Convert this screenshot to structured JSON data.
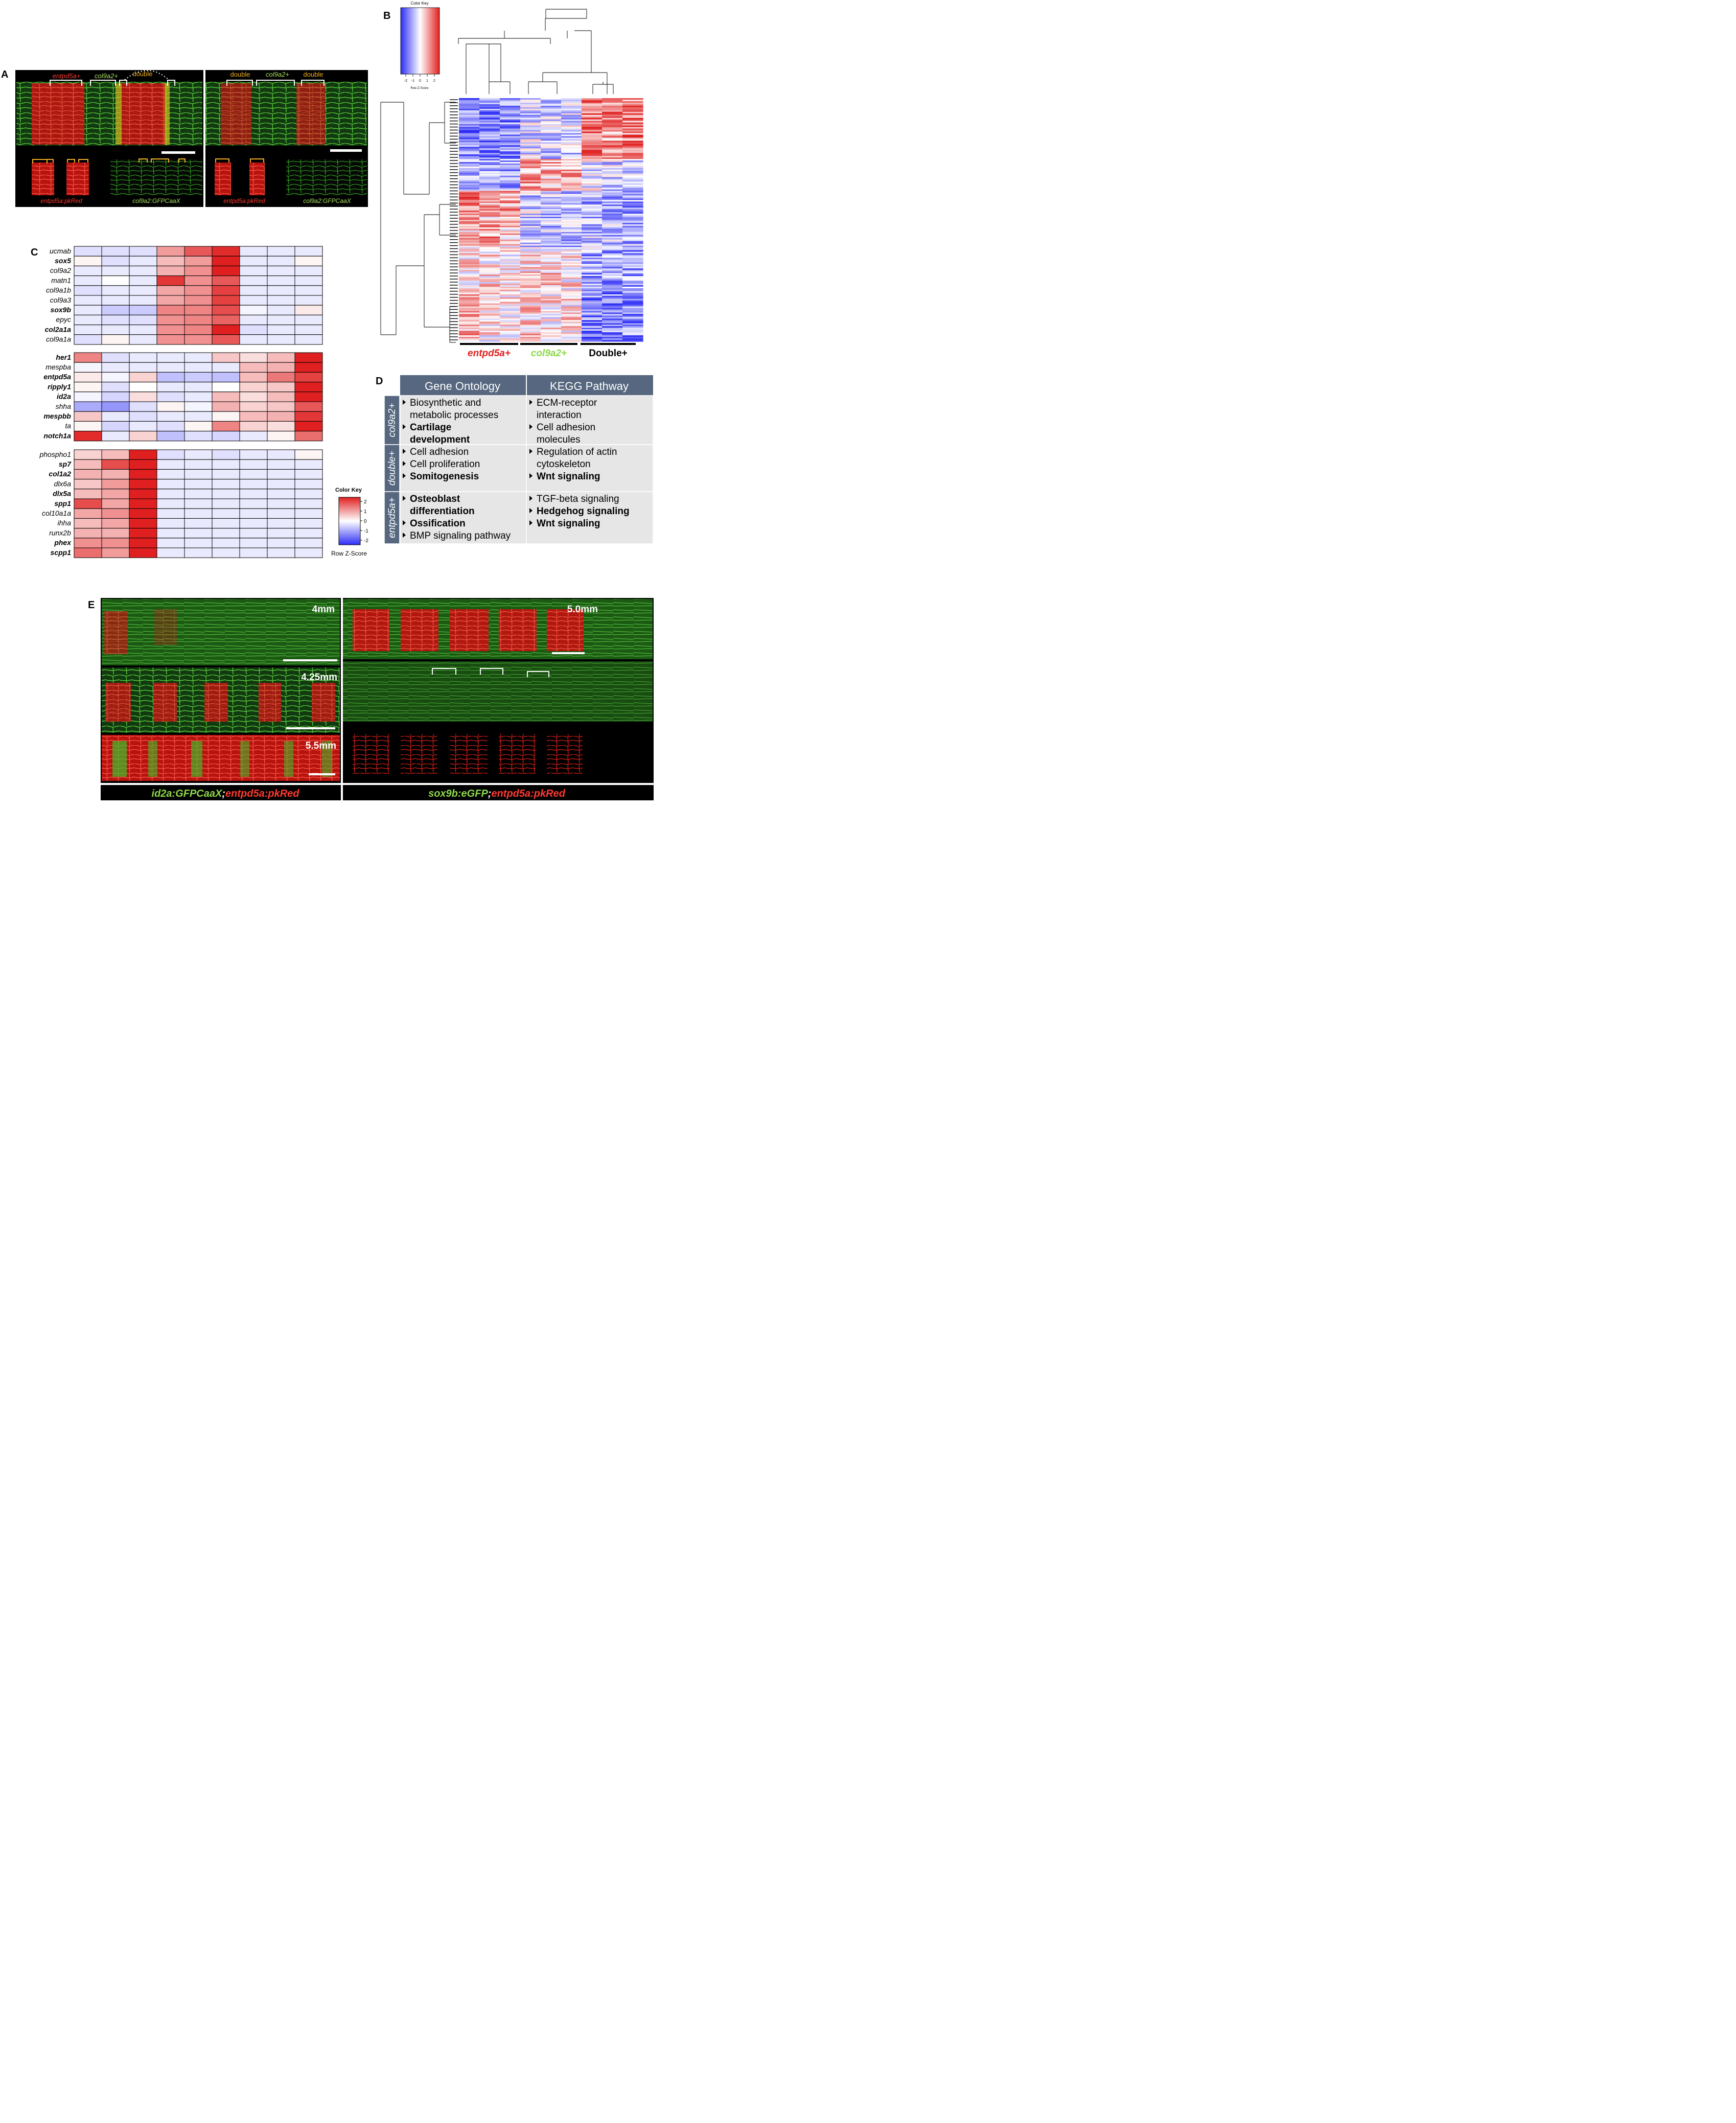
{
  "panelA": {
    "letter": "A",
    "left_labels": {
      "entpd": "entpd5a+",
      "col9": "col9a2+",
      "double": "double"
    },
    "right_labels": {
      "double1": "double",
      "col9": "col9a2+",
      "double2": "double"
    },
    "captions": [
      "entpd5a:pkRed",
      "col9a2:GFPCaaX",
      "entpd5a:pkRed",
      "col9a2:GFPCaaX"
    ]
  },
  "panelB": {
    "letter": "B",
    "key_title": "Color Key",
    "key_axis_label": "Row Z-Score",
    "key_ticks": [
      "-2",
      "-1",
      "0",
      "1",
      "2"
    ],
    "groups": [
      "entpd5a+",
      "col9a2+",
      "Double+"
    ]
  },
  "panelC": {
    "letter": "C",
    "key_title": "Color Key",
    "key_axis_label": "Row Z-Score",
    "key_ticks": [
      "2",
      "1",
      "0",
      "-1",
      "-2"
    ]
  },
  "panelD": {
    "letter": "D",
    "headers": [
      "Gene Ontology",
      "KEGG Pathway"
    ],
    "rows": [
      {
        "label": "col9a2+",
        "go": [
          {
            "text": "Biosynthetic and",
            "bullet": true,
            "bold": false
          },
          {
            "text": "metabolic processes",
            "bullet": false,
            "bold": false
          },
          {
            "text": "Cartilage",
            "bullet": true,
            "bold": true
          },
          {
            "text": "development",
            "bullet": false,
            "bold": true
          }
        ],
        "kegg": [
          {
            "text": "ECM-receptor",
            "bullet": true,
            "bold": false
          },
          {
            "text": "interaction",
            "bullet": false,
            "bold": false
          },
          {
            "text": "Cell adhesion",
            "bullet": true,
            "bold": false
          },
          {
            "text": "molecules",
            "bullet": false,
            "bold": false
          }
        ]
      },
      {
        "label": "double+",
        "go": [
          {
            "text": "Cell adhesion",
            "bullet": true,
            "bold": false
          },
          {
            "text": "Cell proliferation",
            "bullet": true,
            "bold": false
          },
          {
            "text": "Somitogenesis",
            "bullet": true,
            "bold": true
          }
        ],
        "kegg": [
          {
            "text": "Regulation of actin",
            "bullet": true,
            "bold": false
          },
          {
            "text": "cytoskeleton",
            "bullet": false,
            "bold": false
          },
          {
            "text": "Wnt signaling",
            "bullet": true,
            "bold": true
          }
        ]
      },
      {
        "label": "entpd5a+",
        "go": [
          {
            "text": "Osteoblast",
            "bullet": true,
            "bold": true
          },
          {
            "text": "differentiation",
            "bullet": false,
            "bold": true
          },
          {
            "text": "Ossification",
            "bullet": true,
            "bold": true
          },
          {
            "text": "BMP signaling pathway",
            "bullet": true,
            "bold": false
          }
        ],
        "kegg": [
          {
            "text": "TGF-beta signaling",
            "bullet": true,
            "bold": false
          },
          {
            "text": "Hedgehog signaling",
            "bullet": true,
            "bold": true
          },
          {
            "text": "Wnt signaling",
            "bullet": true,
            "bold": true
          }
        ]
      }
    ]
  },
  "panelE": {
    "letter": "E",
    "stages": [
      "4mm",
      "4.25mm",
      "5.5mm",
      "5.0mm"
    ],
    "caption_left": [
      "id2a:GFPCaaX",
      ";",
      "entpd5a:pkRed"
    ],
    "caption_right": [
      "sox9b:eGFP",
      ";",
      "entpd5a:pkRed"
    ]
  },
  "chart_data": {
    "type": "heatmap",
    "scale": {
      "min": -2,
      "max": 2,
      "colors": [
        "#2d2df5",
        "#ffffff",
        "#e02020"
      ]
    },
    "blocks": [
      {
        "genes": [
          {
            "name": "ucmab",
            "bold": false,
            "values": [
              -0.3,
              -0.3,
              -0.3,
              0.9,
              1.5,
              1.9,
              -0.2,
              -0.2,
              -0.2
            ]
          },
          {
            "name": "sox5",
            "bold": true,
            "values": [
              0.1,
              -0.3,
              -0.2,
              0.6,
              0.9,
              2.2,
              -0.2,
              -0.2,
              0.1
            ]
          },
          {
            "name": "col9a2",
            "bold": false,
            "values": [
              -0.2,
              -0.2,
              -0.2,
              0.7,
              1.0,
              2.0,
              -0.2,
              -0.2,
              -0.2
            ]
          },
          {
            "name": "matn1",
            "bold": false,
            "values": [
              -0.2,
              0.0,
              -0.2,
              1.8,
              1.0,
              1.5,
              -0.2,
              -0.2,
              -0.2
            ]
          },
          {
            "name": "col9a1b",
            "bold": false,
            "values": [
              -0.3,
              -0.2,
              -0.2,
              0.8,
              1.0,
              1.7,
              -0.2,
              -0.2,
              -0.2
            ]
          },
          {
            "name": "col9a3",
            "bold": false,
            "values": [
              -0.2,
              -0.2,
              -0.2,
              0.8,
              1.0,
              1.7,
              -0.2,
              -0.2,
              -0.2
            ]
          },
          {
            "name": "sox9b",
            "bold": true,
            "values": [
              -0.2,
              -0.5,
              -0.5,
              1.1,
              1.1,
              1.6,
              -0.1,
              -0.2,
              0.2
            ]
          },
          {
            "name": "epyc",
            "bold": false,
            "values": [
              -0.2,
              -0.3,
              -0.3,
              1.0,
              1.1,
              1.4,
              -0.2,
              -0.2,
              -0.2
            ]
          },
          {
            "name": "col2a1a",
            "bold": true,
            "values": [
              -0.2,
              -0.2,
              -0.2,
              1.0,
              1.1,
              2.3,
              -0.3,
              -0.2,
              -0.2
            ]
          },
          {
            "name": "col9a1a",
            "bold": false,
            "values": [
              -0.3,
              0.1,
              -0.2,
              1.0,
              1.0,
              1.5,
              -0.2,
              -0.2,
              -0.2
            ]
          }
        ]
      },
      {
        "genes": [
          {
            "name": "her1",
            "bold": true,
            "values": [
              1.1,
              -0.3,
              -0.2,
              -0.2,
              -0.2,
              0.5,
              0.3,
              0.6,
              2.3
            ]
          },
          {
            "name": "mespba",
            "bold": false,
            "values": [
              -0.1,
              -0.2,
              -0.2,
              -0.2,
              -0.2,
              -0.2,
              0.6,
              0.7,
              2.2
            ]
          },
          {
            "name": "entpd5a",
            "bold": true,
            "values": [
              0.2,
              -0.1,
              0.4,
              -0.6,
              -0.5,
              -0.6,
              0.6,
              1.2,
              1.7
            ]
          },
          {
            "name": "ripply1",
            "bold": true,
            "values": [
              0.1,
              -0.3,
              0.0,
              -0.2,
              -0.2,
              0.0,
              0.4,
              0.5,
              2.0
            ]
          },
          {
            "name": "id2a",
            "bold": true,
            "values": [
              -0.1,
              -0.4,
              0.3,
              -0.3,
              -0.2,
              0.6,
              0.3,
              0.6,
              2.1
            ]
          },
          {
            "name": "shha",
            "bold": false,
            "values": [
              -0.8,
              -1.0,
              -0.3,
              0.1,
              -0.1,
              0.7,
              0.4,
              0.5,
              1.5
            ]
          },
          {
            "name": "mespbb",
            "bold": true,
            "values": [
              0.5,
              -0.2,
              -0.3,
              -0.2,
              -0.2,
              0.1,
              0.6,
              0.7,
              1.8
            ]
          },
          {
            "name": "ta",
            "bold": false,
            "values": [
              0.1,
              -0.4,
              -0.2,
              -0.3,
              0.1,
              1.1,
              0.4,
              0.3,
              2.0
            ]
          },
          {
            "name": "notch1a",
            "bold": true,
            "values": [
              1.9,
              -0.2,
              0.4,
              -0.6,
              -0.3,
              -0.4,
              -0.2,
              0.1,
              1.3
            ]
          }
        ]
      },
      {
        "genes": [
          {
            "name": "phospho1",
            "bold": false,
            "values": [
              0.4,
              0.6,
              2.3,
              -0.3,
              -0.2,
              -0.3,
              -0.2,
              -0.2,
              0.1
            ]
          },
          {
            "name": "sp7",
            "bold": true,
            "values": [
              0.6,
              1.6,
              2.0,
              -0.2,
              -0.2,
              -0.2,
              -0.2,
              -0.2,
              -0.2
            ]
          },
          {
            "name": "col1a2",
            "bold": true,
            "values": [
              0.7,
              0.7,
              2.1,
              -0.2,
              -0.2,
              -0.2,
              -0.2,
              -0.2,
              -0.2
            ]
          },
          {
            "name": "dlx6a",
            "bold": false,
            "values": [
              0.5,
              0.9,
              2.2,
              -0.2,
              -0.2,
              -0.2,
              -0.2,
              -0.2,
              -0.2
            ]
          },
          {
            "name": "dlx5a",
            "bold": true,
            "values": [
              0.6,
              0.8,
              2.2,
              -0.2,
              -0.2,
              -0.2,
              -0.2,
              -0.2,
              -0.2
            ]
          },
          {
            "name": "spp1",
            "bold": true,
            "values": [
              1.6,
              0.8,
              2.0,
              -0.2,
              -0.2,
              -0.2,
              -0.2,
              -0.2,
              -0.2
            ]
          },
          {
            "name": "col10a1a",
            "bold": false,
            "values": [
              0.8,
              1.0,
              2.0,
              -0.2,
              -0.2,
              -0.2,
              -0.2,
              -0.2,
              -0.2
            ]
          },
          {
            "name": "ihha",
            "bold": false,
            "values": [
              0.6,
              0.8,
              2.2,
              -0.2,
              -0.2,
              -0.2,
              -0.2,
              -0.2,
              -0.2
            ]
          },
          {
            "name": "runx2b",
            "bold": false,
            "values": [
              0.7,
              0.7,
              2.1,
              -0.2,
              -0.2,
              -0.2,
              -0.2,
              -0.2,
              -0.2
            ]
          },
          {
            "name": "phex",
            "bold": true,
            "values": [
              1.0,
              1.0,
              2.1,
              -0.2,
              -0.2,
              -0.2,
              -0.2,
              -0.2,
              -0.2
            ]
          },
          {
            "name": "scpp1",
            "bold": true,
            "values": [
              1.3,
              0.9,
              2.2,
              -0.2,
              -0.2,
              -0.2,
              -0.2,
              -0.2,
              -0.2
            ]
          }
        ]
      }
    ]
  }
}
